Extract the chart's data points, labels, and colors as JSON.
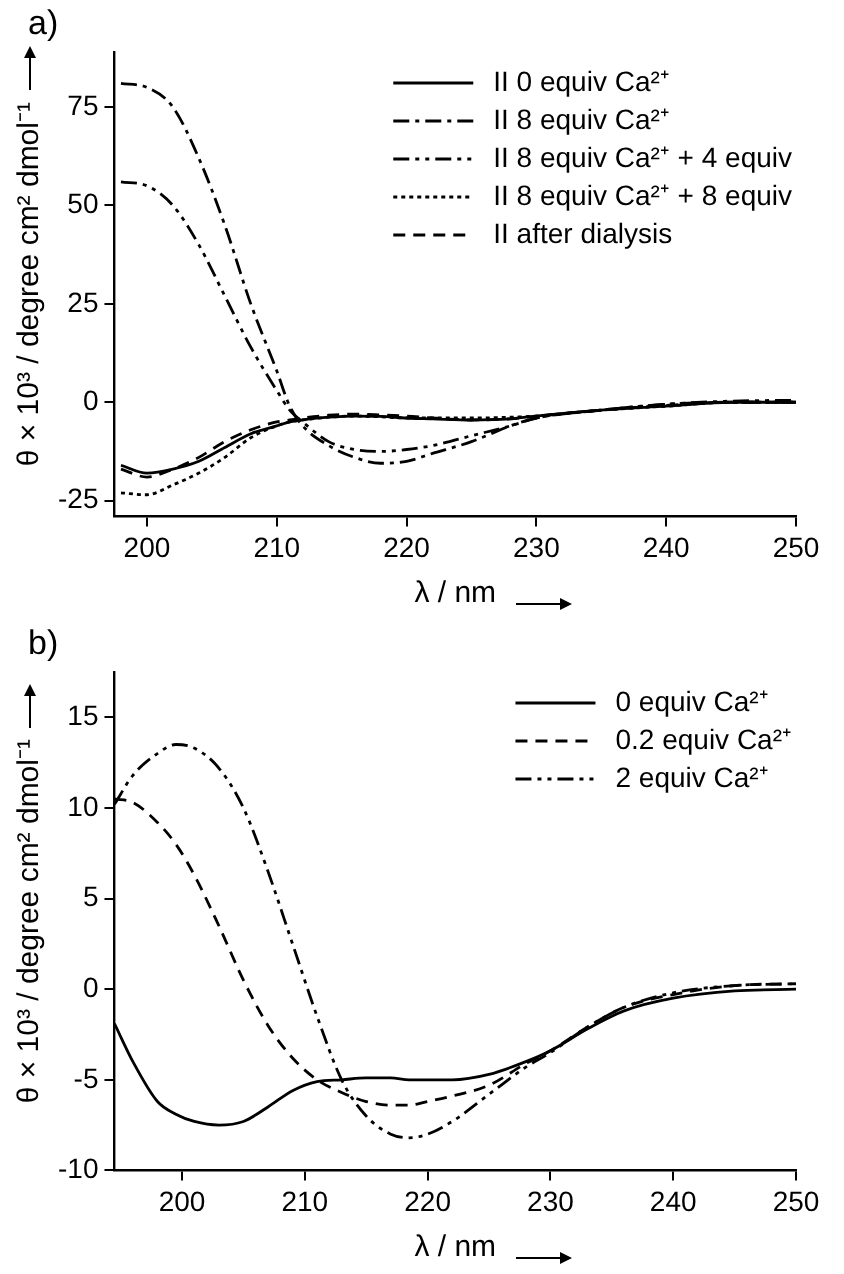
{
  "chart_data": [
    {
      "type": "line",
      "annotations": [
        "a)"
      ],
      "xlabel": "λ / nm",
      "ylabel": "θ × 10³ / degree cm² dmol⁻¹",
      "xlim": [
        197.5,
        250
      ],
      "xticks": [
        200,
        210,
        220,
        230,
        240,
        250
      ],
      "ylim": [
        -29,
        89
      ],
      "yticks": [
        -25,
        0,
        25,
        50,
        75
      ],
      "grid": false,
      "legend": "top right",
      "marker": "none",
      "x": [
        198,
        200,
        202,
        204,
        206,
        208,
        210,
        211,
        212,
        214,
        216,
        218,
        220,
        222,
        225,
        228,
        230,
        235,
        240,
        245,
        250
      ],
      "series": [
        {
          "name": "II 0 equiv Ca²⁺",
          "color": "#000000",
          "line_style": "solid",
          "values": [
            -16,
            -18,
            -17,
            -15,
            -11.5,
            -8,
            -6,
            -5,
            -4.5,
            -3.8,
            -3.5,
            -3.6,
            -4,
            -4.2,
            -4.5,
            -4.2,
            -3.5,
            -2,
            -1,
            0,
            0
          ]
        },
        {
          "name": "II 8 equiv Ca²⁺",
          "color": "#000000",
          "line_style": "dashdot",
          "values": [
            81,
            80,
            75,
            62,
            45,
            25,
            8,
            -1,
            -6,
            -11,
            -14,
            -15.5,
            -15,
            -13,
            -10,
            -6,
            -4,
            -2,
            -0.5,
            0,
            0
          ]
        },
        {
          "name": "II 8 equiv Ca²⁺ + 4 equiv",
          "color": "#000000",
          "line_style": "dashdotdot",
          "values": [
            56,
            55,
            50,
            40,
            27,
            14,
            3,
            -2,
            -5,
            -10,
            -12,
            -12.5,
            -12,
            -11,
            -8.5,
            -6,
            -4,
            -2,
            -0.5,
            0.3,
            0.5
          ]
        },
        {
          "name": "II 8 equiv Ca²⁺ + 8 equiv",
          "color": "#000000",
          "line_style": "dotted",
          "values": [
            -23,
            -23.5,
            -21,
            -18,
            -14,
            -9,
            -6,
            -5,
            -4.5,
            -3.8,
            -3.5,
            -3.7,
            -4,
            -4,
            -4,
            -3.8,
            -3.5,
            -2,
            -1,
            0,
            0
          ]
        },
        {
          "name": "II after dialysis",
          "color": "#000000",
          "line_style": "dashed",
          "values": [
            -17,
            -19,
            -17,
            -14,
            -10,
            -7,
            -5,
            -4.5,
            -4,
            -3.3,
            -3,
            -3.2,
            -3.5,
            -4,
            -4.5,
            -4.2,
            -3.5,
            -2,
            -0.8,
            0,
            0
          ]
        }
      ]
    },
    {
      "type": "line",
      "annotations": [
        "b)"
      ],
      "xlabel": "λ / nm",
      "ylabel": "θ × 10³ / degree cm² dmol⁻¹",
      "xlim": [
        194.5,
        250
      ],
      "xticks": [
        200,
        210,
        220,
        230,
        240,
        250
      ],
      "ylim": [
        -10,
        17.5
      ],
      "yticks": [
        -10,
        -5,
        0,
        5,
        10,
        15
      ],
      "grid": false,
      "legend": "top right",
      "marker": "none",
      "x": [
        194.5,
        196,
        198,
        199.5,
        201,
        203,
        205,
        207,
        209,
        211,
        213,
        215,
        217,
        218.5,
        220,
        222,
        225,
        228,
        230,
        233,
        236,
        240,
        245,
        250
      ],
      "series": [
        {
          "name": "0 equiv Ca²⁺",
          "color": "#000000",
          "line_style": "solid",
          "values": [
            -1.9,
            -4,
            -6.2,
            -6.9,
            -7.3,
            -7.5,
            -7.3,
            -6.5,
            -5.6,
            -5.1,
            -5,
            -4.9,
            -4.9,
            -5,
            -5,
            -5,
            -4.7,
            -4,
            -3.4,
            -2.2,
            -1.2,
            -0.5,
            -0.1,
            0
          ]
        },
        {
          "name": "0.2 equiv Ca²⁺",
          "color": "#000000",
          "line_style": "dashed",
          "values": [
            10.5,
            10.3,
            9.2,
            8,
            6.3,
            3.5,
            0.5,
            -2,
            -3.8,
            -5,
            -5.7,
            -6.2,
            -6.4,
            -6.4,
            -6.2,
            -5.9,
            -5.3,
            -4.1,
            -3.4,
            -2.1,
            -1,
            -0.3,
            0.2,
            0.3
          ]
        },
        {
          "name": "2 equiv Ca²⁺",
          "color": "#000000",
          "line_style": "dashdotdot",
          "values": [
            10.2,
            11.8,
            13,
            13.5,
            13.3,
            12.2,
            10,
            6.5,
            2.5,
            -1.5,
            -5,
            -7,
            -8,
            -8.2,
            -8,
            -7.3,
            -5.8,
            -4.3,
            -3.5,
            -2.1,
            -1,
            -0.2,
            0.2,
            0.3
          ]
        }
      ]
    }
  ]
}
